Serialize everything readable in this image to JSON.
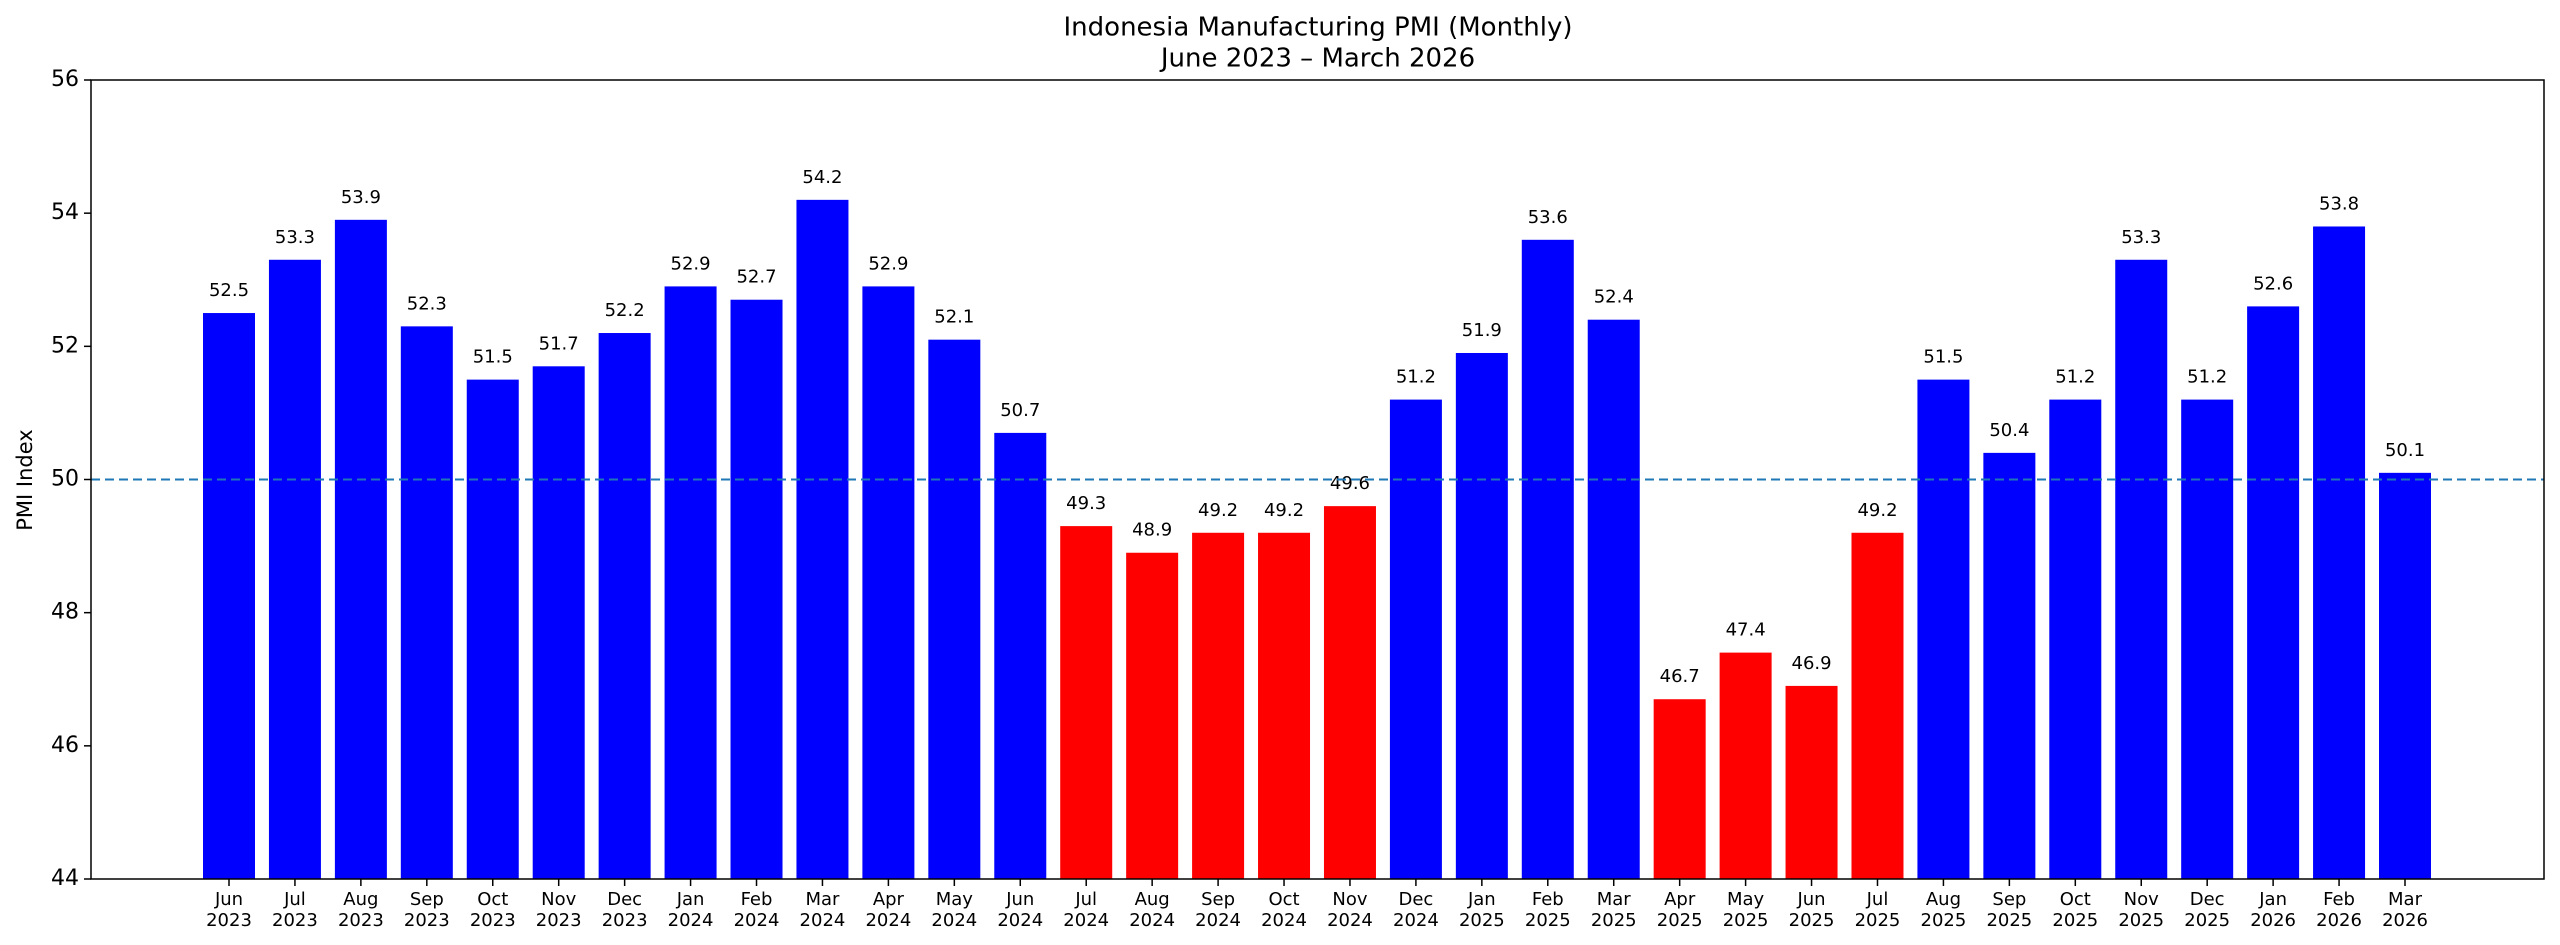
{
  "chart_data": {
    "type": "bar",
    "title": "Indonesia Manufacturing PMI (Monthly)",
    "subtitle": "June 2023 – March 2026",
    "y_label": "PMI Index",
    "categories": [
      "Jun\n2023",
      "Jul\n2023",
      "Aug\n2023",
      "Sep\n2023",
      "Oct\n2023",
      "Nov\n2023",
      "Dec\n2023",
      "Jan\n2024",
      "Feb\n2024",
      "Mar\n2024",
      "Apr\n2024",
      "May\n2024",
      "Jun\n2024",
      "Jul\n2024",
      "Aug\n2024",
      "Sep\n2024",
      "Oct\n2024",
      "Nov\n2024",
      "Dec\n2024",
      "Jan\n2025",
      "Feb\n2025",
      "Mar\n2025",
      "Apr\n2025",
      "May\n2025",
      "Jun\n2025",
      "Jul\n2025",
      "Aug\n2025",
      "Sep\n2025",
      "Oct\n2025",
      "Nov\n2025",
      "Dec\n2025",
      "Jan\n2026",
      "Feb\n2026",
      "Mar\n2026"
    ],
    "values": [
      52.5,
      53.3,
      53.9,
      52.3,
      51.5,
      51.7,
      52.2,
      52.9,
      52.7,
      54.2,
      52.9,
      52.1,
      50.7,
      49.3,
      48.9,
      49.2,
      49.2,
      49.6,
      51.2,
      51.9,
      53.6,
      52.4,
      46.7,
      47.4,
      46.9,
      49.2,
      51.5,
      50.4,
      51.2,
      53.3,
      51.2,
      52.6,
      53.8,
      50.1
    ],
    "colors": [
      "#0000ff",
      "#0000ff",
      "#0000ff",
      "#0000ff",
      "#0000ff",
      "#0000ff",
      "#0000ff",
      "#0000ff",
      "#0000ff",
      "#0000ff",
      "#0000ff",
      "#0000ff",
      "#0000ff",
      "#ff0000",
      "#ff0000",
      "#ff0000",
      "#ff0000",
      "#ff0000",
      "#0000ff",
      "#0000ff",
      "#0000ff",
      "#0000ff",
      "#ff0000",
      "#ff0000",
      "#ff0000",
      "#ff0000",
      "#0000ff",
      "#0000ff",
      "#0000ff",
      "#0000ff",
      "#0000ff",
      "#0000ff",
      "#0000ff",
      "#0000ff"
    ],
    "reference_line": {
      "value": 50,
      "color": "#1f77b4",
      "style": "dashed"
    },
    "ylim": [
      44,
      56
    ],
    "yticks": [
      44,
      46,
      48,
      50,
      52,
      54,
      56
    ],
    "grid": false
  }
}
